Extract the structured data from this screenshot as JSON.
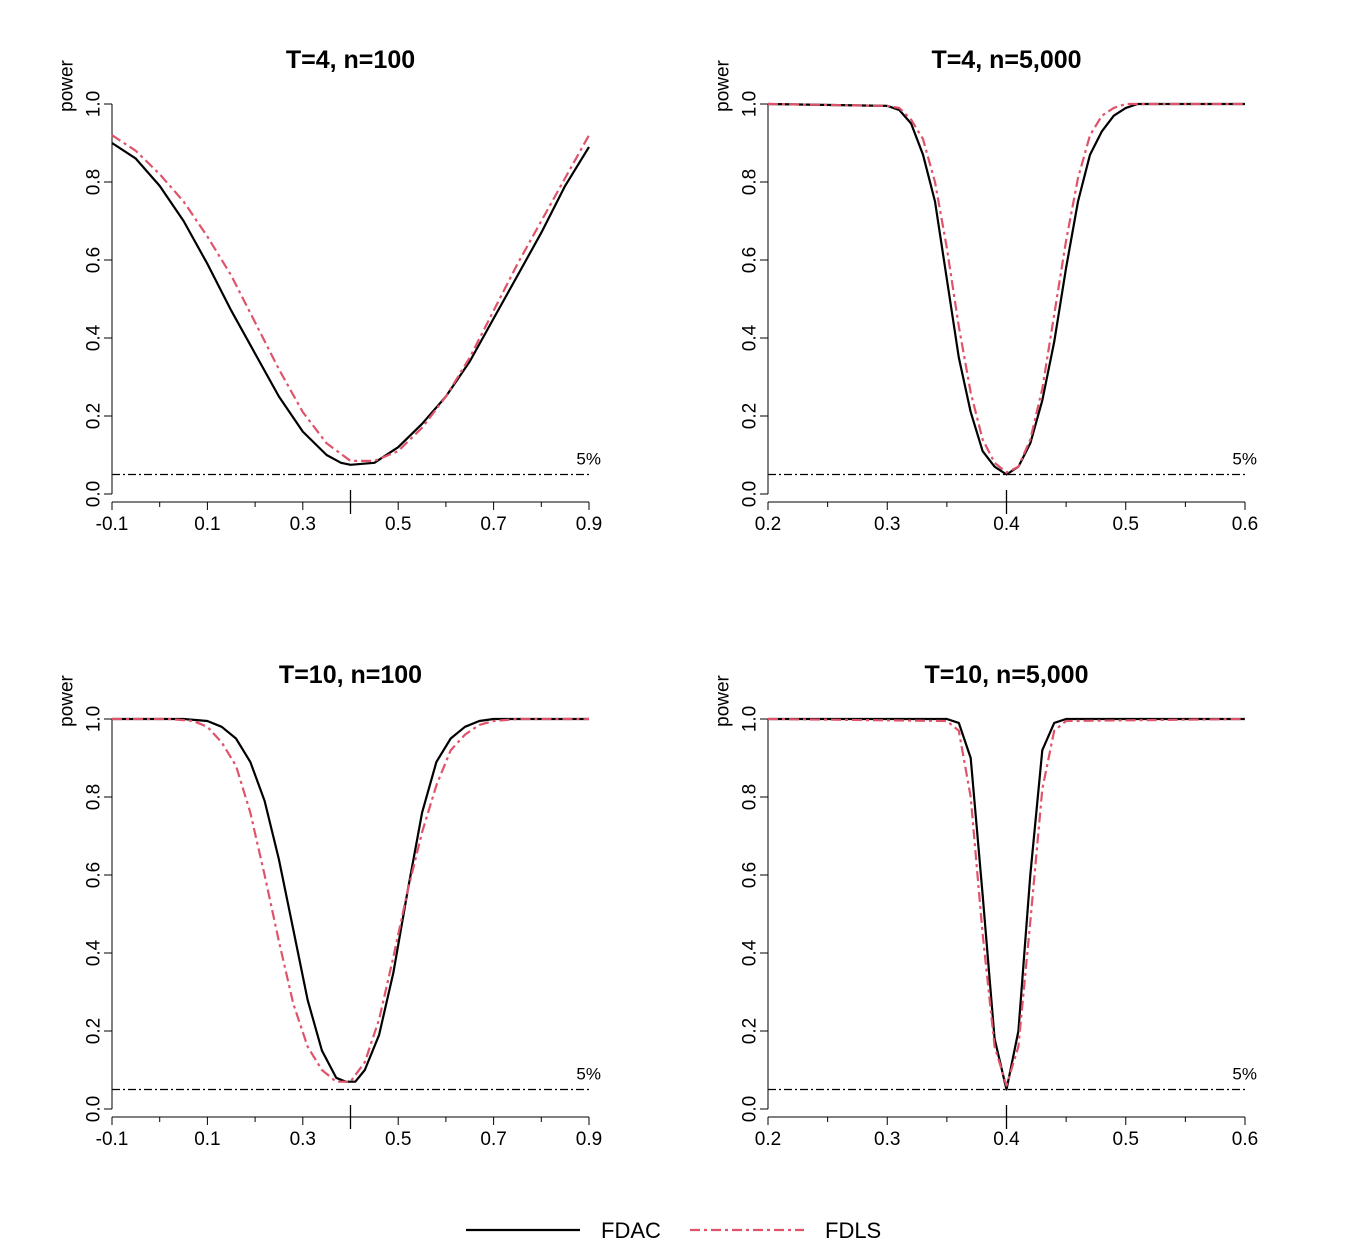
{
  "colors": {
    "FDAC": "#000000",
    "FDLS": "#DF536B"
  },
  "legend": [
    {
      "name": "FDAC",
      "style": "solid"
    },
    {
      "name": "FDLS",
      "style": "dashdot"
    }
  ],
  "chart_data": [
    {
      "type": "line",
      "title": "T=4, n=100",
      "ylabel": "power",
      "xlim": [
        -0.1,
        0.9
      ],
      "ylim": [
        0,
        1
      ],
      "xticks": [
        -0.1,
        0.1,
        0.3,
        0.5,
        0.7,
        0.9
      ],
      "xtick_labels": [
        "-0.1",
        "0.1",
        "0.3",
        "0.5",
        "0.7",
        "0.9"
      ],
      "yticks": [
        0,
        0.2,
        0.4,
        0.6,
        0.8,
        1.0
      ],
      "ytick_labels": [
        "0.0",
        "0.2",
        "0.4",
        "0.6",
        "0.8",
        "1.0"
      ],
      "ref_level": 0.05,
      "ref_label": "5%",
      "true_value": 0.4,
      "series": [
        {
          "name": "FDAC",
          "x": [
            -0.1,
            -0.05,
            0.0,
            0.05,
            0.1,
            0.15,
            0.2,
            0.25,
            0.3,
            0.35,
            0.38,
            0.4,
            0.45,
            0.5,
            0.55,
            0.6,
            0.65,
            0.7,
            0.75,
            0.8,
            0.85,
            0.9
          ],
          "y": [
            0.9,
            0.86,
            0.79,
            0.7,
            0.59,
            0.47,
            0.36,
            0.25,
            0.16,
            0.1,
            0.08,
            0.075,
            0.08,
            0.12,
            0.18,
            0.25,
            0.34,
            0.45,
            0.56,
            0.67,
            0.79,
            0.89
          ]
        },
        {
          "name": "FDLS",
          "x": [
            -0.1,
            -0.05,
            0.0,
            0.05,
            0.1,
            0.15,
            0.2,
            0.25,
            0.3,
            0.35,
            0.4,
            0.45,
            0.5,
            0.55,
            0.6,
            0.65,
            0.7,
            0.75,
            0.8,
            0.85,
            0.9
          ],
          "y": [
            0.92,
            0.88,
            0.82,
            0.75,
            0.66,
            0.56,
            0.44,
            0.32,
            0.21,
            0.13,
            0.085,
            0.085,
            0.11,
            0.17,
            0.25,
            0.35,
            0.47,
            0.59,
            0.7,
            0.81,
            0.92
          ]
        }
      ]
    },
    {
      "type": "line",
      "title": "T=4, n=5,000",
      "ylabel": "power",
      "xlim": [
        0.2,
        0.6
      ],
      "ylim": [
        0,
        1
      ],
      "xticks": [
        0.2,
        0.3,
        0.4,
        0.5,
        0.6
      ],
      "xtick_labels": [
        "0.2",
        "0.3",
        "0.4",
        "0.5",
        "0.6"
      ],
      "yticks": [
        0,
        0.2,
        0.4,
        0.6,
        0.8,
        1.0
      ],
      "ytick_labels": [
        "0.0",
        "0.2",
        "0.4",
        "0.6",
        "0.8",
        "1.0"
      ],
      "ref_level": 0.05,
      "ref_label": "5%",
      "true_value": 0.4,
      "series": [
        {
          "name": "FDAC",
          "x": [
            0.2,
            0.3,
            0.31,
            0.32,
            0.33,
            0.34,
            0.35,
            0.36,
            0.37,
            0.38,
            0.39,
            0.4,
            0.41,
            0.42,
            0.43,
            0.44,
            0.45,
            0.46,
            0.47,
            0.48,
            0.49,
            0.5,
            0.51,
            0.6
          ],
          "y": [
            1.0,
            0.995,
            0.985,
            0.95,
            0.87,
            0.75,
            0.55,
            0.35,
            0.21,
            0.11,
            0.07,
            0.05,
            0.07,
            0.13,
            0.24,
            0.39,
            0.58,
            0.75,
            0.87,
            0.93,
            0.97,
            0.99,
            1.0,
            1.0
          ]
        },
        {
          "name": "FDLS",
          "x": [
            0.2,
            0.3,
            0.31,
            0.32,
            0.33,
            0.34,
            0.35,
            0.36,
            0.37,
            0.38,
            0.39,
            0.4,
            0.41,
            0.42,
            0.43,
            0.44,
            0.45,
            0.46,
            0.47,
            0.48,
            0.49,
            0.5,
            0.6
          ],
          "y": [
            1.0,
            0.995,
            0.99,
            0.96,
            0.91,
            0.8,
            0.63,
            0.43,
            0.26,
            0.14,
            0.08,
            0.055,
            0.07,
            0.14,
            0.27,
            0.46,
            0.65,
            0.81,
            0.92,
            0.97,
            0.99,
            1.0,
            1.0
          ]
        }
      ]
    },
    {
      "type": "line",
      "title": "T=10, n=100",
      "ylabel": "power",
      "xlim": [
        -0.1,
        0.9
      ],
      "ylim": [
        0,
        1
      ],
      "xticks": [
        -0.1,
        0.1,
        0.3,
        0.5,
        0.7,
        0.9
      ],
      "xtick_labels": [
        "-0.1",
        "0.1",
        "0.3",
        "0.5",
        "0.7",
        "0.9"
      ],
      "yticks": [
        0,
        0.2,
        0.4,
        0.6,
        0.8,
        1.0
      ],
      "ytick_labels": [
        "0.0",
        "0.2",
        "0.4",
        "0.6",
        "0.8",
        "1.0"
      ],
      "ref_level": 0.05,
      "ref_label": "5%",
      "true_value": 0.4,
      "series": [
        {
          "name": "FDAC",
          "x": [
            -0.1,
            0.05,
            0.1,
            0.13,
            0.16,
            0.19,
            0.22,
            0.25,
            0.28,
            0.31,
            0.34,
            0.37,
            0.39,
            0.41,
            0.43,
            0.46,
            0.49,
            0.52,
            0.55,
            0.58,
            0.61,
            0.64,
            0.67,
            0.7,
            0.75,
            0.9
          ],
          "y": [
            1.0,
            1.0,
            0.995,
            0.98,
            0.95,
            0.89,
            0.79,
            0.64,
            0.46,
            0.28,
            0.15,
            0.08,
            0.07,
            0.07,
            0.1,
            0.19,
            0.35,
            0.56,
            0.76,
            0.89,
            0.95,
            0.98,
            0.995,
            1.0,
            1.0,
            1.0
          ]
        },
        {
          "name": "FDLS",
          "x": [
            -0.1,
            0.02,
            0.07,
            0.1,
            0.13,
            0.16,
            0.19,
            0.22,
            0.25,
            0.28,
            0.31,
            0.34,
            0.37,
            0.4,
            0.43,
            0.46,
            0.49,
            0.52,
            0.55,
            0.58,
            0.61,
            0.64,
            0.67,
            0.7,
            0.75,
            0.9
          ],
          "y": [
            1.0,
            1.0,
            0.995,
            0.98,
            0.94,
            0.88,
            0.76,
            0.6,
            0.43,
            0.27,
            0.16,
            0.1,
            0.07,
            0.07,
            0.12,
            0.23,
            0.39,
            0.56,
            0.71,
            0.83,
            0.92,
            0.96,
            0.985,
            0.995,
            1.0,
            1.0
          ]
        }
      ]
    },
    {
      "type": "line",
      "title": "T=10, n=5,000",
      "ylabel": "power",
      "xlim": [
        0.2,
        0.6
      ],
      "ylim": [
        0,
        1
      ],
      "xticks": [
        0.2,
        0.3,
        0.4,
        0.5,
        0.6
      ],
      "xtick_labels": [
        "0.2",
        "0.3",
        "0.4",
        "0.5",
        "0.6"
      ],
      "yticks": [
        0,
        0.2,
        0.4,
        0.6,
        0.8,
        1.0
      ],
      "ytick_labels": [
        "0.0",
        "0.2",
        "0.4",
        "0.6",
        "0.8",
        "1.0"
      ],
      "ref_level": 0.05,
      "ref_label": "5%",
      "true_value": 0.4,
      "series": [
        {
          "name": "FDAC",
          "x": [
            0.2,
            0.35,
            0.36,
            0.37,
            0.38,
            0.39,
            0.4,
            0.41,
            0.42,
            0.43,
            0.44,
            0.45,
            0.6
          ],
          "y": [
            1.0,
            1.0,
            0.99,
            0.9,
            0.55,
            0.18,
            0.05,
            0.2,
            0.6,
            0.92,
            0.99,
            1.0,
            1.0
          ]
        },
        {
          "name": "FDLS",
          "x": [
            0.2,
            0.35,
            0.36,
            0.37,
            0.38,
            0.39,
            0.4,
            0.41,
            0.42,
            0.43,
            0.44,
            0.45,
            0.6
          ],
          "y": [
            1.0,
            0.995,
            0.97,
            0.8,
            0.45,
            0.16,
            0.06,
            0.16,
            0.48,
            0.82,
            0.97,
            0.995,
            1.0
          ]
        }
      ]
    }
  ]
}
